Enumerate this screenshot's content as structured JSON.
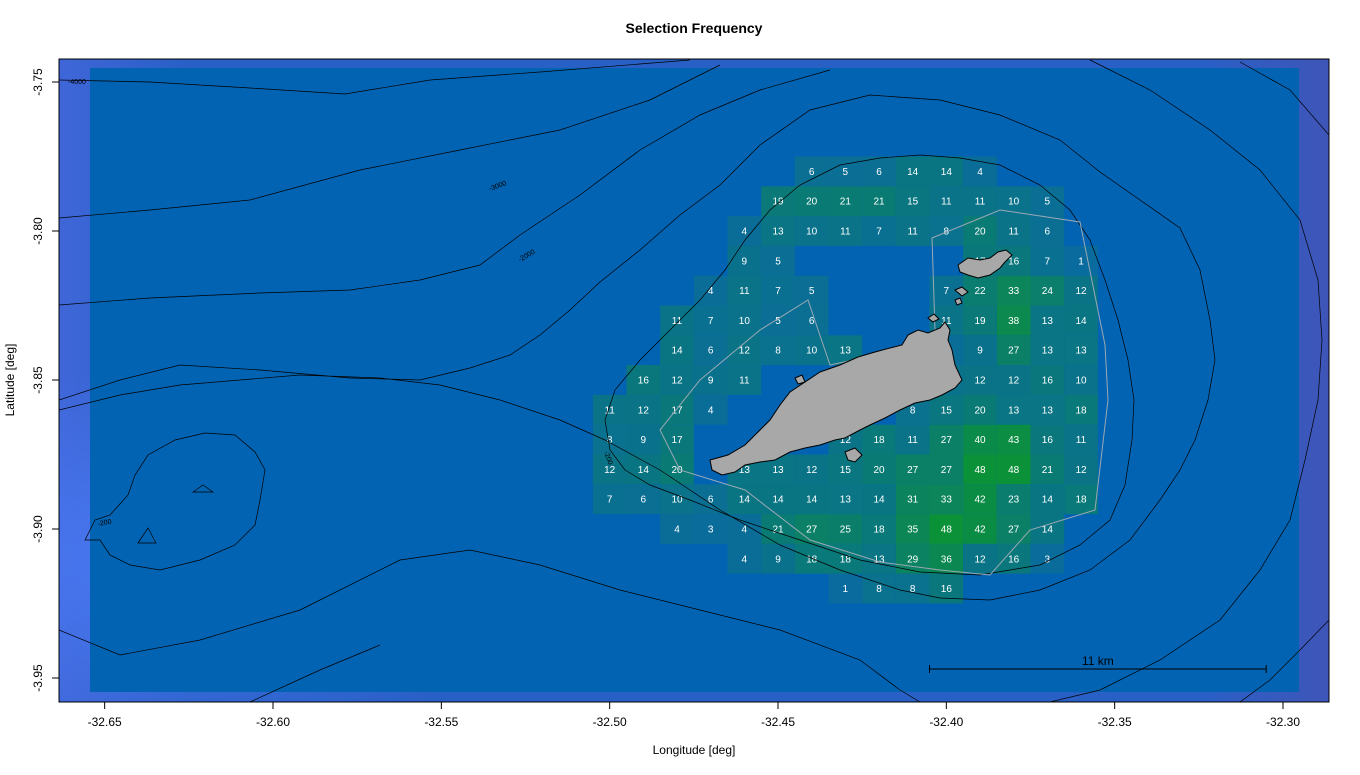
{
  "title": "Selection Frequency",
  "x_label": "Longitude [deg]",
  "y_label": "Latitude [deg]",
  "scale_bar": {
    "label": "11 km",
    "from_lon": -32.405,
    "to_lon": -32.305,
    "lat": -3.947
  },
  "axes": {
    "x_ticks": [
      -32.65,
      -32.6,
      -32.55,
      -32.5,
      -32.45,
      -32.4,
      -32.35,
      -32.3
    ],
    "x_tick_labels": [
      "-32.65",
      "-32.60",
      "-32.55",
      "-32.50",
      "-32.45",
      "-32.40",
      "-32.35",
      "-32.30"
    ],
    "y_ticks": [
      -3.75,
      -3.8,
      -3.85,
      -3.9,
      -3.95
    ],
    "y_tick_labels": [
      "-3.75",
      "-3.80",
      "-3.85",
      "-3.90",
      "-3.95"
    ],
    "xlim": [
      -32.665,
      -32.287
    ],
    "ylim": [
      -3.957,
      -3.741
    ]
  },
  "contour_labels": [
    "-4000",
    "-3000",
    "-2000",
    "-200",
    "-200"
  ],
  "colors": {
    "ocean": "#0163B2",
    "ocean_edge": "#3F63D2",
    "island": "#A8A8A8",
    "low_freq": "#0A6AA0",
    "high_freq": "#0B9138"
  },
  "chart_data": {
    "type": "heatmap",
    "x_origin": -32.45,
    "x_step": 0.01,
    "y_origin": -3.88,
    "y_step": 0.01,
    "cells": [
      [
        -32.44,
        -3.78,
        6
      ],
      [
        -32.43,
        -3.78,
        5
      ],
      [
        -32.42,
        -3.78,
        6
      ],
      [
        -32.41,
        -3.78,
        14
      ],
      [
        -32.4,
        -3.78,
        14
      ],
      [
        -32.39,
        -3.78,
        4
      ],
      [
        -32.45,
        -3.79,
        19
      ],
      [
        -32.44,
        -3.79,
        20
      ],
      [
        -32.43,
        -3.79,
        21
      ],
      [
        -32.42,
        -3.79,
        21
      ],
      [
        -32.41,
        -3.79,
        15
      ],
      [
        -32.4,
        -3.79,
        11
      ],
      [
        -32.39,
        -3.79,
        11
      ],
      [
        -32.38,
        -3.79,
        10
      ],
      [
        -32.37,
        -3.79,
        5
      ],
      [
        -32.46,
        -3.8,
        4
      ],
      [
        -32.45,
        -3.8,
        13
      ],
      [
        -32.44,
        -3.8,
        10
      ],
      [
        -32.43,
        -3.8,
        11
      ],
      [
        -32.42,
        -3.8,
        7
      ],
      [
        -32.41,
        -3.8,
        11
      ],
      [
        -32.4,
        -3.8,
        8
      ],
      [
        -32.39,
        -3.8,
        20
      ],
      [
        -32.38,
        -3.8,
        11
      ],
      [
        -32.37,
        -3.8,
        6
      ],
      [
        -32.46,
        -3.81,
        9
      ],
      [
        -32.45,
        -3.81,
        5
      ],
      [
        -32.39,
        -3.81,
        17
      ],
      [
        -32.38,
        -3.81,
        16
      ],
      [
        -32.37,
        -3.81,
        7
      ],
      [
        -32.36,
        -3.81,
        1
      ],
      [
        -32.47,
        -3.82,
        4
      ],
      [
        -32.46,
        -3.82,
        11
      ],
      [
        -32.45,
        -3.82,
        7
      ],
      [
        -32.44,
        -3.82,
        5
      ],
      [
        -32.4,
        -3.82,
        7
      ],
      [
        -32.39,
        -3.82,
        22
      ],
      [
        -32.38,
        -3.82,
        33
      ],
      [
        -32.37,
        -3.82,
        24
      ],
      [
        -32.36,
        -3.82,
        12
      ],
      [
        -32.48,
        -3.83,
        11
      ],
      [
        -32.47,
        -3.83,
        7
      ],
      [
        -32.46,
        -3.83,
        10
      ],
      [
        -32.45,
        -3.83,
        5
      ],
      [
        -32.44,
        -3.83,
        6
      ],
      [
        -32.4,
        -3.83,
        11
      ],
      [
        -32.39,
        -3.83,
        19
      ],
      [
        -32.38,
        -3.83,
        38
      ],
      [
        -32.37,
        -3.83,
        13
      ],
      [
        -32.36,
        -3.83,
        14
      ],
      [
        -32.48,
        -3.84,
        14
      ],
      [
        -32.47,
        -3.84,
        6
      ],
      [
        -32.46,
        -3.84,
        12
      ],
      [
        -32.45,
        -3.84,
        8
      ],
      [
        -32.44,
        -3.84,
        10
      ],
      [
        -32.43,
        -3.84,
        13
      ],
      [
        -32.4,
        -3.84,
        4
      ],
      [
        -32.39,
        -3.84,
        9
      ],
      [
        -32.38,
        -3.84,
        27
      ],
      [
        -32.37,
        -3.84,
        13
      ],
      [
        -32.36,
        -3.84,
        13
      ],
      [
        -32.49,
        -3.85,
        16
      ],
      [
        -32.48,
        -3.85,
        12
      ],
      [
        -32.47,
        -3.85,
        9
      ],
      [
        -32.46,
        -3.85,
        11
      ],
      [
        -32.4,
        -3.85,
        10
      ],
      [
        -32.39,
        -3.85,
        12
      ],
      [
        -32.38,
        -3.85,
        12
      ],
      [
        -32.37,
        -3.85,
        16
      ],
      [
        -32.36,
        -3.85,
        10
      ],
      [
        -32.5,
        -3.86,
        11
      ],
      [
        -32.49,
        -3.86,
        12
      ],
      [
        -32.48,
        -3.86,
        17
      ],
      [
        -32.47,
        -3.86,
        4
      ],
      [
        -32.41,
        -3.86,
        8
      ],
      [
        -32.4,
        -3.86,
        15
      ],
      [
        -32.39,
        -3.86,
        20
      ],
      [
        -32.38,
        -3.86,
        13
      ],
      [
        -32.37,
        -3.86,
        13
      ],
      [
        -32.36,
        -3.86,
        18
      ],
      [
        -32.5,
        -3.87,
        8
      ],
      [
        -32.49,
        -3.87,
        9
      ],
      [
        -32.48,
        -3.87,
        17
      ],
      [
        -32.43,
        -3.87,
        12
      ],
      [
        -32.42,
        -3.87,
        18
      ],
      [
        -32.41,
        -3.87,
        11
      ],
      [
        -32.4,
        -3.87,
        27
      ],
      [
        -32.39,
        -3.87,
        40
      ],
      [
        -32.38,
        -3.87,
        43
      ],
      [
        -32.37,
        -3.87,
        16
      ],
      [
        -32.36,
        -3.87,
        11
      ],
      [
        -32.5,
        -3.88,
        12
      ],
      [
        -32.49,
        -3.88,
        14
      ],
      [
        -32.48,
        -3.88,
        20
      ],
      [
        -32.46,
        -3.88,
        13
      ],
      [
        -32.45,
        -3.88,
        13
      ],
      [
        -32.44,
        -3.88,
        12
      ],
      [
        -32.43,
        -3.88,
        15
      ],
      [
        -32.42,
        -3.88,
        20
      ],
      [
        -32.41,
        -3.88,
        27
      ],
      [
        -32.4,
        -3.88,
        27
      ],
      [
        -32.39,
        -3.88,
        48
      ],
      [
        -32.38,
        -3.88,
        48
      ],
      [
        -32.37,
        -3.88,
        21
      ],
      [
        -32.36,
        -3.88,
        12
      ],
      [
        -32.5,
        -3.89,
        7
      ],
      [
        -32.49,
        -3.89,
        6
      ],
      [
        -32.48,
        -3.89,
        10
      ],
      [
        -32.47,
        -3.89,
        6
      ],
      [
        -32.46,
        -3.89,
        14
      ],
      [
        -32.45,
        -3.89,
        14
      ],
      [
        -32.44,
        -3.89,
        14
      ],
      [
        -32.43,
        -3.89,
        13
      ],
      [
        -32.42,
        -3.89,
        14
      ],
      [
        -32.41,
        -3.89,
        31
      ],
      [
        -32.4,
        -3.89,
        33
      ],
      [
        -32.39,
        -3.89,
        42
      ],
      [
        -32.38,
        -3.89,
        23
      ],
      [
        -32.37,
        -3.89,
        14
      ],
      [
        -32.36,
        -3.89,
        18
      ],
      [
        -32.48,
        -3.9,
        4
      ],
      [
        -32.47,
        -3.9,
        3
      ],
      [
        -32.46,
        -3.9,
        4
      ],
      [
        -32.45,
        -3.9,
        21
      ],
      [
        -32.44,
        -3.9,
        27
      ],
      [
        -32.43,
        -3.9,
        25
      ],
      [
        -32.42,
        -3.9,
        18
      ],
      [
        -32.41,
        -3.9,
        35
      ],
      [
        -32.4,
        -3.9,
        48
      ],
      [
        -32.39,
        -3.9,
        42
      ],
      [
        -32.38,
        -3.9,
        27
      ],
      [
        -32.37,
        -3.9,
        14
      ],
      [
        -32.46,
        -3.91,
        4
      ],
      [
        -32.45,
        -3.91,
        9
      ],
      [
        -32.44,
        -3.91,
        18
      ],
      [
        -32.43,
        -3.91,
        18
      ],
      [
        -32.42,
        -3.91,
        13
      ],
      [
        -32.41,
        -3.91,
        29
      ],
      [
        -32.4,
        -3.91,
        36
      ],
      [
        -32.39,
        -3.91,
        12
      ],
      [
        -32.38,
        -3.91,
        16
      ],
      [
        -32.37,
        -3.91,
        3
      ],
      [
        -32.43,
        -3.92,
        1
      ],
      [
        -32.42,
        -3.92,
        8
      ],
      [
        -32.41,
        -3.92,
        8
      ],
      [
        -32.4,
        -3.92,
        16
      ]
    ]
  }
}
